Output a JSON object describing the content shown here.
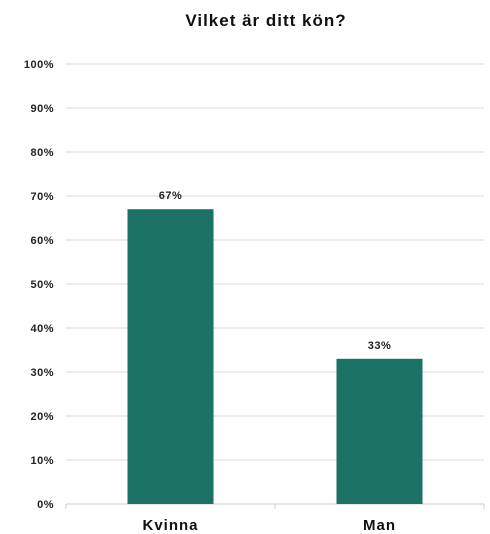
{
  "chart_data": {
    "type": "bar",
    "title": "Vilket är ditt kön?",
    "categories": [
      "Kvinna",
      "Man"
    ],
    "values": [
      67,
      33
    ],
    "data_labels": [
      "67%",
      "33%"
    ],
    "xlabel": "",
    "ylabel": "",
    "ylim": [
      0,
      100
    ],
    "yticks": [
      0,
      10,
      20,
      30,
      40,
      50,
      60,
      70,
      80,
      90,
      100
    ],
    "ytick_labels": [
      "0%",
      "10%",
      "20%",
      "30%",
      "40%",
      "50%",
      "60%",
      "70%",
      "80%",
      "90%",
      "100%"
    ],
    "grid": true,
    "legend": "none",
    "bar_color": "#1b7265"
  }
}
